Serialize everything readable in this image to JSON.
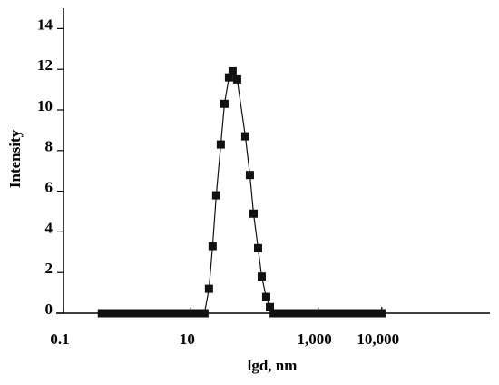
{
  "chart_data": {
    "type": "line",
    "x_label": "lgd, nm",
    "y_label": "Intensity",
    "log_x": true,
    "color": "#111111",
    "x": [
      0.4,
      0.5,
      0.63,
      0.79,
      1,
      1.26,
      1.58,
      2,
      2.5,
      3.2,
      4,
      5,
      6.3,
      7.9,
      10,
      12.6,
      16.4,
      19.3,
      22,
      25.1,
      29.6,
      33.8,
      39.8,
      45.4,
      53.5,
      71.9,
      84.8,
      96.8,
      114,
      130,
      153,
      175,
      200,
      250,
      320,
      400,
      500,
      630,
      790,
      1000,
      1260,
      1580,
      2000,
      2500,
      3200,
      4000,
      5000,
      6300,
      7900,
      10000
    ],
    "values": [
      0,
      0,
      0,
      0,
      0,
      0,
      0,
      0,
      0,
      0,
      0,
      0,
      0,
      0,
      0,
      0,
      0,
      1.2,
      3.3,
      5.8,
      8.3,
      10.3,
      11.6,
      11.9,
      11.5,
      8.7,
      6.8,
      4.9,
      3.2,
      1.8,
      0.8,
      0.3,
      0,
      0,
      0,
      0,
      0,
      0,
      0,
      0,
      0,
      0,
      0,
      0,
      0,
      0,
      0,
      0,
      0,
      0
    ],
    "xlim": [
      0.1,
      500000
    ],
    "xticks": [
      0.1,
      10,
      {
        "value": 1000,
        "label": "1,000"
      },
      {
        "value": 10000,
        "label": "10,000"
      }
    ],
    "ylim": [
      0,
      15
    ],
    "yticks": [
      0,
      2,
      4,
      6,
      8,
      10,
      12,
      14
    ]
  }
}
